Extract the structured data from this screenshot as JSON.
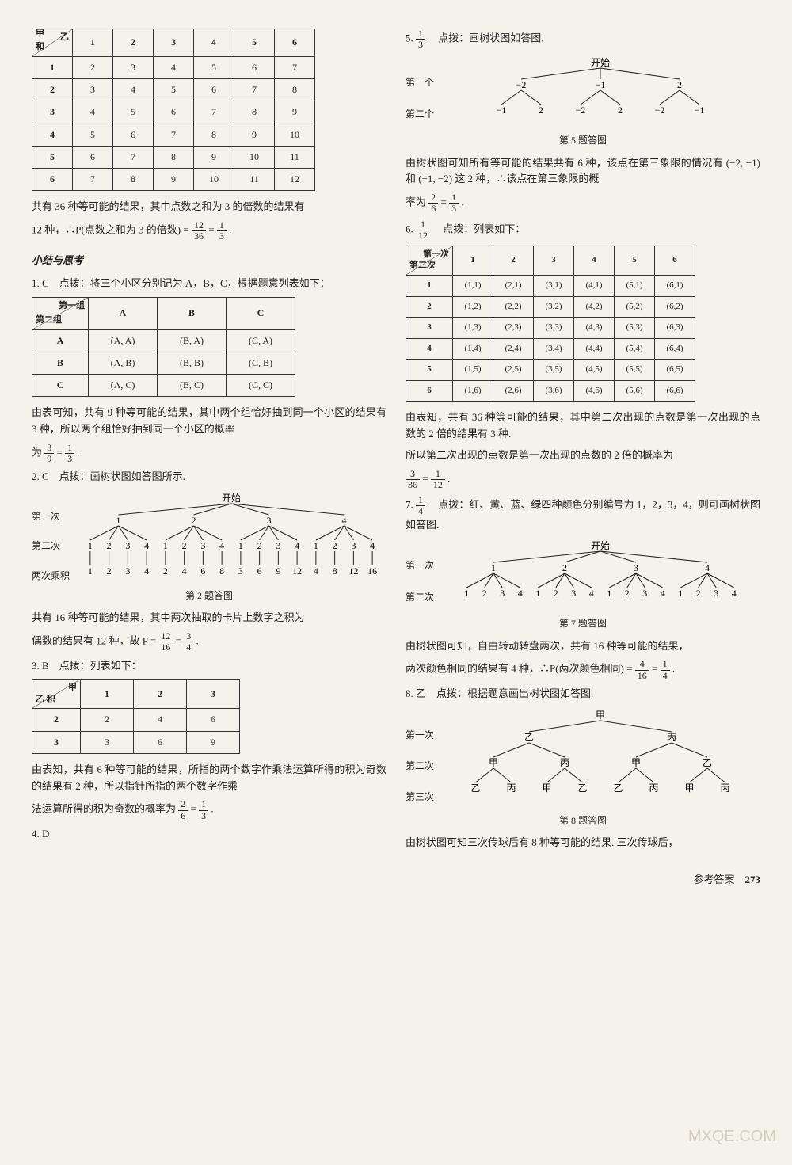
{
  "left": {
    "table1": {
      "diag_top": "乙",
      "diag_bottom": "甲",
      "cols": [
        "1",
        "2",
        "3",
        "4",
        "5",
        "6"
      ],
      "rows": [
        {
          "h": "1",
          "c": [
            "2",
            "3",
            "4",
            "5",
            "6",
            "7"
          ]
        },
        {
          "h": "2",
          "c": [
            "3",
            "4",
            "5",
            "6",
            "7",
            "8"
          ]
        },
        {
          "h": "3",
          "c": [
            "4",
            "5",
            "6",
            "7",
            "8",
            "9"
          ]
        },
        {
          "h": "4",
          "c": [
            "5",
            "6",
            "7",
            "8",
            "9",
            "10"
          ]
        },
        {
          "h": "5",
          "c": [
            "6",
            "7",
            "8",
            "9",
            "10",
            "11"
          ]
        },
        {
          "h": "6",
          "c": [
            "7",
            "8",
            "9",
            "10",
            "11",
            "12"
          ]
        }
      ],
      "note1": "共有 36 种等可能的结果，其中点数之和为 3 的倍数的结果有",
      "note2_a": "12 种，∴P(点数之和为 3 的倍数) = ",
      "note2_frac1_n": "12",
      "note2_frac1_d": "36",
      "note2_eq": " = ",
      "note2_frac2_n": "1",
      "note2_frac2_d": "3",
      "note2_end": "."
    },
    "section_heading": "小结与思考",
    "q1": {
      "label": "1. C　点拨：将三个小区分别记为 A，B，C，根据题意列表如下：",
      "diag_top": "第一组",
      "diag_bottom": "第二组",
      "cols": [
        "A",
        "B",
        "C"
      ],
      "rows": [
        {
          "h": "A",
          "c": [
            "(A, A)",
            "(B, A)",
            "(C, A)"
          ]
        },
        {
          "h": "B",
          "c": [
            "(A, B)",
            "(B, B)",
            "(C, B)"
          ]
        },
        {
          "h": "C",
          "c": [
            "(A, C)",
            "(B, C)",
            "(C, C)"
          ]
        }
      ],
      "after1": "由表可知，共有 9 种等可能的结果，其中两个组恰好抽到同一个小区的结果有 3 种，所以两个组恰好抽到同一个小区的概率",
      "after2_a": "为 ",
      "after2_f1n": "3",
      "after2_f1d": "9",
      "after2_eq": " = ",
      "after2_f2n": "1",
      "after2_f2d": "3",
      "after2_end": "."
    },
    "q2": {
      "label": "2. C　点拨：画树状图如答图所示.",
      "tree_top": "开始",
      "lv1_label": "第一次",
      "lv2_label": "第二次",
      "lv3_label": "两次乘积",
      "lv1": [
        "1",
        "2",
        "3",
        "4"
      ],
      "lv2": [
        "1",
        "2",
        "3",
        "4",
        "1",
        "2",
        "3",
        "4",
        "1",
        "2",
        "3",
        "4",
        "1",
        "2",
        "3",
        "4"
      ],
      "lv3": [
        "1",
        "2",
        "3",
        "4",
        "2",
        "4",
        "6",
        "8",
        "3",
        "6",
        "9",
        "12",
        "4",
        "8",
        "12",
        "16"
      ],
      "caption": "第 2 题答图",
      "after1": "共有 16 种等可能的结果，其中两次抽取的卡片上数字之积为",
      "after2_a": "偶数的结果有 12 种，故 P = ",
      "after2_f1n": "12",
      "after2_f1d": "16",
      "after2_eq": " = ",
      "after2_f2n": "3",
      "after2_f2d": "4",
      "after2_end": "."
    },
    "q3": {
      "label": "3. B　点拨：列表如下：",
      "diag_top": "甲",
      "diag_bottom": "乙",
      "diag_extra": "积",
      "cols": [
        "1",
        "2",
        "3"
      ],
      "rows": [
        {
          "h": "2",
          "c": [
            "2",
            "4",
            "6"
          ]
        },
        {
          "h": "3",
          "c": [
            "3",
            "6",
            "9"
          ]
        }
      ],
      "after1": "由表知，共有 6 种等可能的结果，所指的两个数字作乘法运算所得的积为奇数的结果有 2 种，所以指针所指的两个数字作乘",
      "after2_a": "法运算所得的积为奇数的概率为 ",
      "after2_f1n": "2",
      "after2_f1d": "6",
      "after2_eq": " = ",
      "after2_f2n": "1",
      "after2_f2d": "3",
      "after2_end": "."
    },
    "q4": "4. D"
  },
  "right": {
    "q5": {
      "label_a": "5. ",
      "label_f_n": "1",
      "label_f_d": "3",
      "label_b": "　点拨：画树状图如答图.",
      "tree_top": "开始",
      "lv1_label": "第一个",
      "lv2_label": "第二个",
      "lv1": [
        "−2",
        "−1",
        "2"
      ],
      "lv2": [
        "−1",
        "2",
        "−2",
        "2",
        "−2",
        "−1"
      ],
      "caption": "第 5 题答图",
      "after1": "由树状图可知所有等可能的结果共有 6 种，该点在第三象限的情况有 (−2, −1) 和 (−1, −2) 这 2 种，∴该点在第三象限的概",
      "after2_a": "率为 ",
      "after2_f1n": "2",
      "after2_f1d": "6",
      "after2_eq": " = ",
      "after2_f2n": "1",
      "after2_f2d": "3",
      "after2_end": "."
    },
    "q6": {
      "label_a": "6. ",
      "label_f_n": "1",
      "label_f_d": "12",
      "label_b": "　点拨：列表如下：",
      "diag_top": "第一次",
      "diag_bottom": "第二次",
      "cols": [
        "1",
        "2",
        "3",
        "4",
        "5",
        "6"
      ],
      "rows": [
        {
          "h": "1",
          "c": [
            "(1,1)",
            "(2,1)",
            "(3,1)",
            "(4,1)",
            "(5,1)",
            "(6,1)"
          ]
        },
        {
          "h": "2",
          "c": [
            "(1,2)",
            "(2,2)",
            "(3,2)",
            "(4,2)",
            "(5,2)",
            "(6,2)"
          ]
        },
        {
          "h": "3",
          "c": [
            "(1,3)",
            "(2,3)",
            "(3,3)",
            "(4,3)",
            "(5,3)",
            "(6,3)"
          ]
        },
        {
          "h": "4",
          "c": [
            "(1,4)",
            "(2,4)",
            "(3,4)",
            "(4,4)",
            "(5,4)",
            "(6,4)"
          ]
        },
        {
          "h": "5",
          "c": [
            "(1,5)",
            "(2,5)",
            "(3,5)",
            "(4,5)",
            "(5,5)",
            "(6,5)"
          ]
        },
        {
          "h": "6",
          "c": [
            "(1,6)",
            "(2,6)",
            "(3,6)",
            "(4,6)",
            "(5,6)",
            "(6,6)"
          ]
        }
      ],
      "after1": "由表知，共有 36 种等可能的结果，其中第二次出现的点数是第一次出现的点数的 2 倍的结果有 3 种.",
      "after2": "所以第二次出现的点数是第一次出现的点数的 2 倍的概率为",
      "after3_f1n": "3",
      "after3_f1d": "36",
      "after3_eq": " = ",
      "after3_f2n": "1",
      "after3_f2d": "12",
      "after3_end": "."
    },
    "q7": {
      "label_a": "7. ",
      "label_f_n": "1",
      "label_f_d": "4",
      "label_b": "　点拨：红、黄、蓝、绿四种颜色分别编号为 1，2，3，4，则可画树状图如答图.",
      "tree_top": "开始",
      "lv1_label": "第一次",
      "lv2_label": "第二次",
      "lv1": [
        "1",
        "2",
        "3",
        "4"
      ],
      "lv2": [
        "1",
        "2",
        "3",
        "4",
        "1",
        "2",
        "3",
        "4",
        "1",
        "2",
        "3",
        "4",
        "1",
        "2",
        "3",
        "4"
      ],
      "caption": "第 7 题答图",
      "after1": "由树状图可知，自由转动转盘两次，共有 16 种等可能的结果，",
      "after2_a": "两次颜色相同的结果有 4 种，∴P(两次颜色相同) = ",
      "after2_f1n": "4",
      "after2_f1d": "16",
      "after2_eq": " = ",
      "after2_f2n": "1",
      "after2_f2d": "4",
      "after2_end": "."
    },
    "q8": {
      "label": "8. 乙　点拨：根据题意画出树状图如答图.",
      "tree_top": "甲",
      "lv1_label": "第一次",
      "lv2_label": "第二次",
      "lv3_label": "第三次",
      "lv1": [
        "乙",
        "丙"
      ],
      "lv2": [
        "甲",
        "丙",
        "甲",
        "乙"
      ],
      "lv3": [
        "乙",
        "丙",
        "甲",
        "乙",
        "乙",
        "丙",
        "甲",
        "丙"
      ],
      "caption": "第 8 题答图",
      "after": "由树状图可知三次传球后有 8 种等可能的结果. 三次传球后，"
    }
  },
  "footer": {
    "label": "参考答案",
    "page": "273"
  },
  "watermark": "MXQE.COM"
}
